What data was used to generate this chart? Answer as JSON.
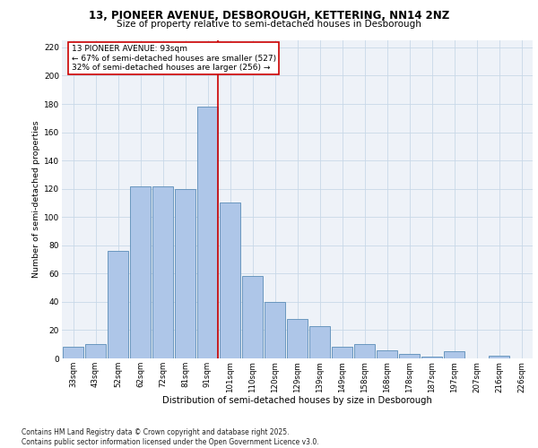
{
  "title1": "13, PIONEER AVENUE, DESBOROUGH, KETTERING, NN14 2NZ",
  "title2": "Size of property relative to semi-detached houses in Desborough",
  "xlabel": "Distribution of semi-detached houses by size in Desborough",
  "ylabel": "Number of semi-detached properties",
  "categories": [
    "33sqm",
    "43sqm",
    "52sqm",
    "62sqm",
    "72sqm",
    "81sqm",
    "91sqm",
    "101sqm",
    "110sqm",
    "120sqm",
    "129sqm",
    "139sqm",
    "149sqm",
    "158sqm",
    "168sqm",
    "178sqm",
    "187sqm",
    "197sqm",
    "207sqm",
    "216sqm",
    "226sqm"
  ],
  "values": [
    8,
    10,
    76,
    122,
    122,
    120,
    178,
    110,
    58,
    40,
    28,
    23,
    8,
    10,
    6,
    3,
    1,
    5,
    0,
    2,
    0
  ],
  "bar_color": "#aec6e8",
  "bar_edge_color": "#5b8db8",
  "vline_color": "#cc0000",
  "box_text_lines": [
    "13 PIONEER AVENUE: 93sqm",
    "← 67% of semi-detached houses are smaller (527)",
    "32% of semi-detached houses are larger (256) →"
  ],
  "box_color": "#cc0000",
  "ylim": [
    0,
    225
  ],
  "yticks": [
    0,
    20,
    40,
    60,
    80,
    100,
    120,
    140,
    160,
    180,
    200,
    220
  ],
  "grid_color": "#c8d8e8",
  "background_color": "#eef2f8",
  "footer_text": "Contains HM Land Registry data © Crown copyright and database right 2025.\nContains public sector information licensed under the Open Government Licence v3.0."
}
